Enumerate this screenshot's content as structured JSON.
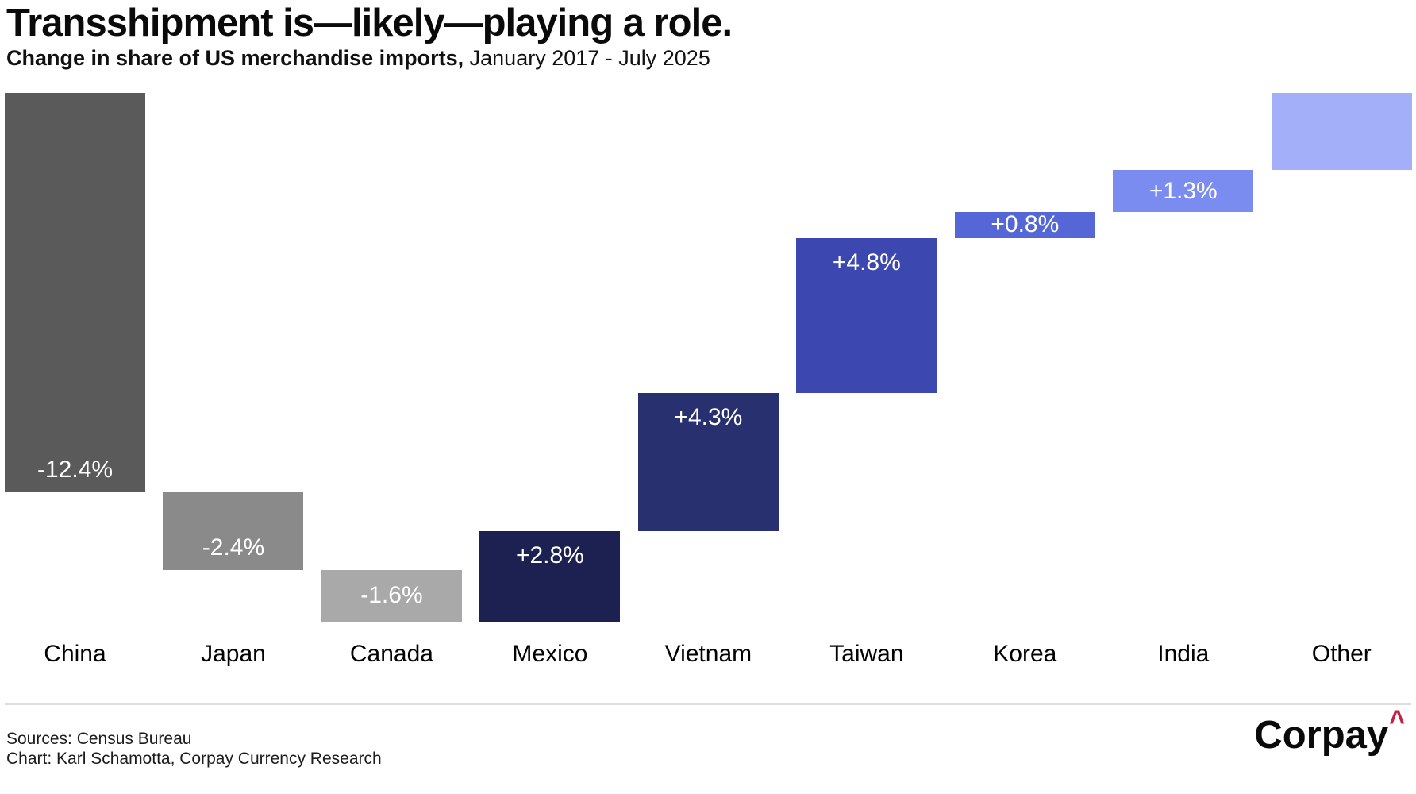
{
  "header": {
    "title": "Transshipment is—likely—playing a role.",
    "subtitle_bold": "Change in share of US merchandise imports,",
    "subtitle_regular": " January 2017 - July 2025"
  },
  "chart_data": {
    "type": "bar",
    "subtype": "waterfall",
    "title": "Transshipment is—likely—playing a role.",
    "subtitle": "Change in share of US merchandise imports, January 2017 - July 2025",
    "unit": "percentage points of US merchandise import share",
    "categories": [
      "China",
      "Japan",
      "Canada",
      "Mexico",
      "Vietnam",
      "Taiwan",
      "Korea",
      "India",
      "Other"
    ],
    "values": [
      -12.4,
      -2.4,
      -1.6,
      2.8,
      4.3,
      4.8,
      0.8,
      1.3,
      2.4
    ],
    "bar_labels": [
      "-12.4%",
      "-2.4%",
      "-1.6%",
      "+2.8%",
      "+4.3%",
      "+4.8%",
      "+0.8%",
      "+1.3%",
      ""
    ],
    "colors": [
      "#5a5a5a",
      "#8a8a8a",
      "#a9a9a9",
      "#1c2152",
      "#283070",
      "#3c48b0",
      "#5567d7",
      "#7b8cf0",
      "#a3aff8"
    ],
    "bar_label_color": "#ffffff",
    "cumulative_start": 0,
    "cumulative_range": [
      -16.4,
      0
    ],
    "gridlines": false,
    "legend": false
  },
  "footer": {
    "sources": "Sources: Census Bureau",
    "credit": "Chart: Karl Schamotta, Corpay Currency Research",
    "logo_text": "Corpay",
    "logo_caret": "^",
    "logo_caret_color": "#c41f44",
    "divider_color": "#dedede"
  }
}
